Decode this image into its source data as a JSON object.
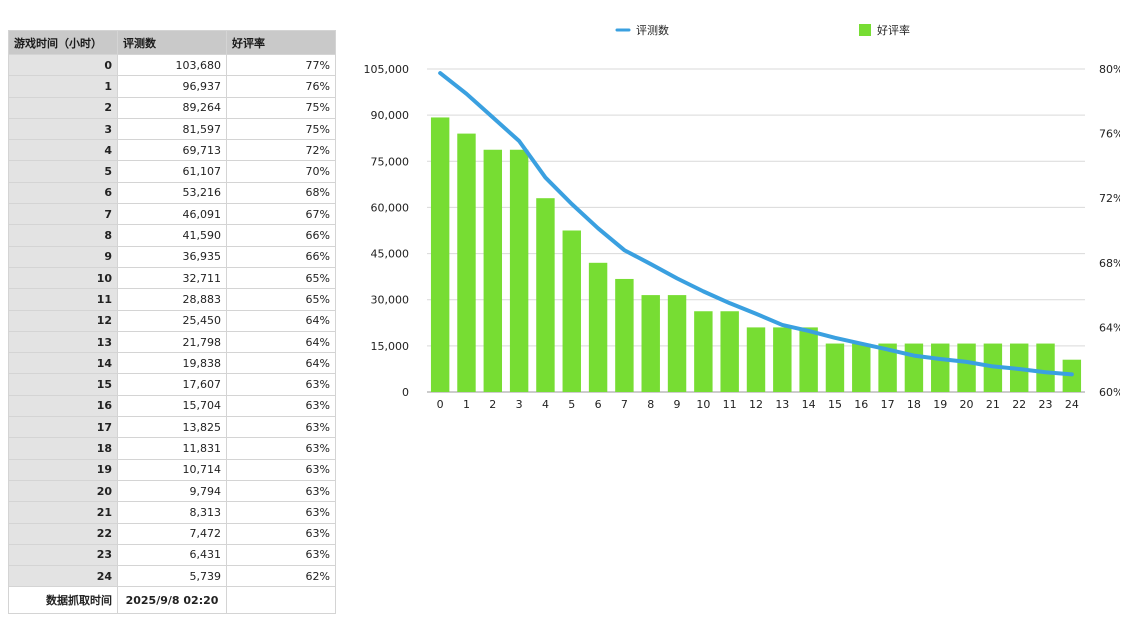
{
  "table": {
    "headers": [
      "游戏时间（小时）",
      "评测数",
      "好评率"
    ],
    "rows": [
      [
        "0",
        "103,680",
        "77%"
      ],
      [
        "1",
        "96,937",
        "76%"
      ],
      [
        "2",
        "89,264",
        "75%"
      ],
      [
        "3",
        "81,597",
        "75%"
      ],
      [
        "4",
        "69,713",
        "72%"
      ],
      [
        "5",
        "61,107",
        "70%"
      ],
      [
        "6",
        "53,216",
        "68%"
      ],
      [
        "7",
        "46,091",
        "67%"
      ],
      [
        "8",
        "41,590",
        "66%"
      ],
      [
        "9",
        "36,935",
        "66%"
      ],
      [
        "10",
        "32,711",
        "65%"
      ],
      [
        "11",
        "28,883",
        "65%"
      ],
      [
        "12",
        "25,450",
        "64%"
      ],
      [
        "13",
        "21,798",
        "64%"
      ],
      [
        "14",
        "19,838",
        "64%"
      ],
      [
        "15",
        "17,607",
        "63%"
      ],
      [
        "16",
        "15,704",
        "63%"
      ],
      [
        "17",
        "13,825",
        "63%"
      ],
      [
        "18",
        "11,831",
        "63%"
      ],
      [
        "19",
        "10,714",
        "63%"
      ],
      [
        "20",
        "9,794",
        "63%"
      ],
      [
        "21",
        "8,313",
        "63%"
      ],
      [
        "22",
        "7,472",
        "63%"
      ],
      [
        "23",
        "6,431",
        "63%"
      ],
      [
        "24",
        "5,739",
        "62%"
      ]
    ],
    "footer": {
      "label": "数据抓取时间",
      "value": "2025/9/8 02:20"
    }
  },
  "chart_data": {
    "type": "bar",
    "categories": [
      "0",
      "1",
      "2",
      "3",
      "4",
      "5",
      "6",
      "7",
      "8",
      "9",
      "10",
      "11",
      "12",
      "13",
      "14",
      "15",
      "16",
      "17",
      "18",
      "19",
      "20",
      "21",
      "22",
      "23",
      "24"
    ],
    "series": [
      {
        "name": "好评率",
        "type": "bar",
        "axis": "right",
        "color": "#77dd33",
        "values": [
          77,
          76,
          75,
          75,
          72,
          70,
          68,
          67,
          66,
          66,
          65,
          65,
          64,
          64,
          64,
          63,
          63,
          63,
          63,
          63,
          63,
          63,
          63,
          63,
          62
        ]
      },
      {
        "name": "评测数",
        "type": "line",
        "axis": "left",
        "color": "#3aa0e0",
        "values": [
          103680,
          96937,
          89264,
          81597,
          69713,
          61107,
          53216,
          46091,
          41590,
          36935,
          32711,
          28883,
          25450,
          21798,
          19838,
          17607,
          15704,
          13825,
          11831,
          10714,
          9794,
          8313,
          7472,
          6431,
          5739
        ]
      }
    ],
    "left_axis": {
      "ylim": [
        0,
        105000
      ],
      "ticks": [
        0,
        15000,
        30000,
        45000,
        60000,
        75000,
        90000,
        105000
      ],
      "tick_labels": [
        "0",
        "15,000",
        "30,000",
        "45,000",
        "60,000",
        "75,000",
        "90,000",
        "105,000"
      ]
    },
    "right_axis": {
      "ylim": [
        60,
        80
      ],
      "ticks": [
        60,
        64,
        68,
        72,
        76,
        80
      ],
      "tick_labels": [
        "60%",
        "64%",
        "68%",
        "72%",
        "76%",
        "80%"
      ]
    },
    "legend": [
      {
        "label": "评测数",
        "kind": "line",
        "color": "#3aa0e0"
      },
      {
        "label": "好评率",
        "kind": "bar",
        "color": "#77dd33"
      }
    ],
    "legend_position": "top",
    "grid": true
  }
}
